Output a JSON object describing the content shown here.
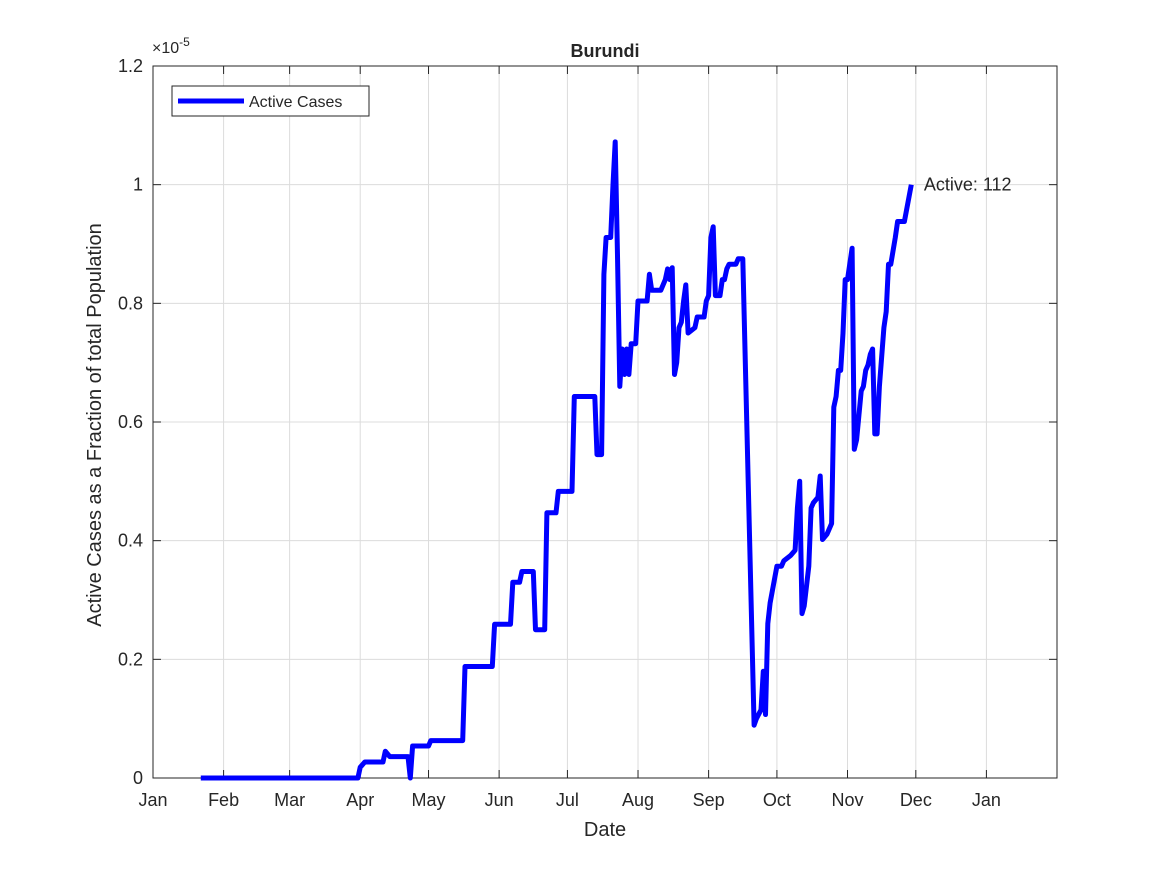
{
  "chart_data": {
    "type": "line",
    "title": "Burundi",
    "xlabel": "Date",
    "ylabel": "Active Cases as a Fraction of total Population",
    "y_exponent_label": "×10",
    "y_exponent_power": "-5",
    "xlim": [
      "2020-01-01",
      "2021-02-01"
    ],
    "ylim": [
      0,
      1.2
    ],
    "x_ticks": [
      {
        "date": "2020-01-01",
        "label": "Jan"
      },
      {
        "date": "2020-02-01",
        "label": "Feb"
      },
      {
        "date": "2020-03-01",
        "label": "Mar"
      },
      {
        "date": "2020-04-01",
        "label": "Apr"
      },
      {
        "date": "2020-05-01",
        "label": "May"
      },
      {
        "date": "2020-06-01",
        "label": "Jun"
      },
      {
        "date": "2020-07-01",
        "label": "Jul"
      },
      {
        "date": "2020-08-01",
        "label": "Aug"
      },
      {
        "date": "2020-09-01",
        "label": "Sep"
      },
      {
        "date": "2020-10-01",
        "label": "Oct"
      },
      {
        "date": "2020-11-01",
        "label": "Nov"
      },
      {
        "date": "2020-12-01",
        "label": "Dec"
      },
      {
        "date": "2021-01-01",
        "label": "Jan"
      }
    ],
    "y_ticks": [
      {
        "value": 0,
        "label": "0"
      },
      {
        "value": 0.2,
        "label": "0.2"
      },
      {
        "value": 0.4,
        "label": "0.4"
      },
      {
        "value": 0.6,
        "label": "0.6"
      },
      {
        "value": 0.8,
        "label": "0.8"
      },
      {
        "value": 1,
        "label": "1"
      },
      {
        "value": 1.2,
        "label": "1.2"
      }
    ],
    "grid": true,
    "legend": {
      "position": "top-left",
      "entries": [
        "Active Cases"
      ]
    },
    "annotations": [
      {
        "date": "2020-12-01",
        "value": 1.0,
        "text": "Active: 112"
      }
    ],
    "series": [
      {
        "name": "Active Cases",
        "color": "#0000ff",
        "points": [
          [
            "2020-01-22",
            0
          ],
          [
            "2020-03-31",
            0
          ],
          [
            "2020-04-01",
            0.018
          ],
          [
            "2020-04-03",
            0.027
          ],
          [
            "2020-04-11",
            0.027
          ],
          [
            "2020-04-12",
            0.045
          ],
          [
            "2020-04-14",
            0.036
          ],
          [
            "2020-04-22",
            0.036
          ],
          [
            "2020-04-23",
            0.0
          ],
          [
            "2020-04-24",
            0.054
          ],
          [
            "2020-05-01",
            0.054
          ],
          [
            "2020-05-02",
            0.063
          ],
          [
            "2020-05-16",
            0.063
          ],
          [
            "2020-05-17",
            0.188
          ],
          [
            "2020-05-29",
            0.188
          ],
          [
            "2020-05-30",
            0.259
          ],
          [
            "2020-06-06",
            0.259
          ],
          [
            "2020-06-07",
            0.33
          ],
          [
            "2020-06-10",
            0.33
          ],
          [
            "2020-06-11",
            0.348
          ],
          [
            "2020-06-16",
            0.348
          ],
          [
            "2020-06-17",
            0.25
          ],
          [
            "2020-06-21",
            0.25
          ],
          [
            "2020-06-22",
            0.447
          ],
          [
            "2020-06-26",
            0.447
          ],
          [
            "2020-06-27",
            0.483
          ],
          [
            "2020-07-03",
            0.483
          ],
          [
            "2020-07-04",
            0.643
          ],
          [
            "2020-07-13",
            0.643
          ],
          [
            "2020-07-14",
            0.545
          ],
          [
            "2020-07-16",
            0.545
          ],
          [
            "2020-07-17",
            0.849
          ],
          [
            "2020-07-18",
            0.911
          ],
          [
            "2020-07-20",
            0.911
          ],
          [
            "2020-07-21",
            1.0
          ],
          [
            "2020-07-22",
            1.072
          ],
          [
            "2020-07-23",
            0.88
          ],
          [
            "2020-07-24",
            0.66
          ],
          [
            "2020-07-25",
            0.723
          ],
          [
            "2020-07-26",
            0.68
          ],
          [
            "2020-07-27",
            0.723
          ],
          [
            "2020-07-28",
            0.68
          ],
          [
            "2020-07-29",
            0.732
          ],
          [
            "2020-07-31",
            0.732
          ],
          [
            "2020-08-01",
            0.804
          ],
          [
            "2020-08-05",
            0.804
          ],
          [
            "2020-08-06",
            0.849
          ],
          [
            "2020-08-07",
            0.822
          ],
          [
            "2020-08-11",
            0.822
          ],
          [
            "2020-08-13",
            0.84
          ],
          [
            "2020-08-14",
            0.858
          ],
          [
            "2020-08-15",
            0.84
          ],
          [
            "2020-08-16",
            0.86
          ],
          [
            "2020-08-17",
            0.68
          ],
          [
            "2020-08-18",
            0.7
          ],
          [
            "2020-08-19",
            0.759
          ],
          [
            "2020-08-20",
            0.768
          ],
          [
            "2020-08-21",
            0.804
          ],
          [
            "2020-08-22",
            0.831
          ],
          [
            "2020-08-23",
            0.75
          ],
          [
            "2020-08-26",
            0.759
          ],
          [
            "2020-08-27",
            0.777
          ],
          [
            "2020-08-30",
            0.777
          ],
          [
            "2020-08-31",
            0.804
          ],
          [
            "2020-09-01",
            0.813
          ],
          [
            "2020-09-02",
            0.911
          ],
          [
            "2020-09-03",
            0.929
          ],
          [
            "2020-09-04",
            0.813
          ],
          [
            "2020-09-06",
            0.813
          ],
          [
            "2020-09-07",
            0.84
          ],
          [
            "2020-09-08",
            0.84
          ],
          [
            "2020-09-09",
            0.858
          ],
          [
            "2020-09-10",
            0.866
          ],
          [
            "2020-09-13",
            0.866
          ],
          [
            "2020-09-14",
            0.875
          ],
          [
            "2020-09-16",
            0.875
          ],
          [
            "2020-09-21",
            0.089
          ],
          [
            "2020-09-22",
            0.1
          ],
          [
            "2020-09-24",
            0.115
          ],
          [
            "2020-09-25",
            0.18
          ],
          [
            "2020-09-26",
            0.107
          ],
          [
            "2020-09-27",
            0.26
          ],
          [
            "2020-09-28",
            0.295
          ],
          [
            "2020-10-01",
            0.357
          ],
          [
            "2020-10-03",
            0.357
          ],
          [
            "2020-10-04",
            0.366
          ],
          [
            "2020-10-07",
            0.375
          ],
          [
            "2020-10-09",
            0.384
          ],
          [
            "2020-10-10",
            0.455
          ],
          [
            "2020-10-11",
            0.5
          ],
          [
            "2020-10-12",
            0.277
          ],
          [
            "2020-10-13",
            0.29
          ],
          [
            "2020-10-15",
            0.357
          ],
          [
            "2020-10-16",
            0.455
          ],
          [
            "2020-10-17",
            0.464
          ],
          [
            "2020-10-19",
            0.473
          ],
          [
            "2020-10-20",
            0.509
          ],
          [
            "2020-10-21",
            0.402
          ],
          [
            "2020-10-23",
            0.411
          ],
          [
            "2020-10-25",
            0.429
          ],
          [
            "2020-10-26",
            0.625
          ],
          [
            "2020-10-27",
            0.643
          ],
          [
            "2020-10-28",
            0.687
          ],
          [
            "2020-10-29",
            0.687
          ],
          [
            "2020-10-30",
            0.75
          ],
          [
            "2020-10-31",
            0.84
          ],
          [
            "2020-11-01",
            0.84
          ],
          [
            "2020-11-03",
            0.893
          ],
          [
            "2020-11-04",
            0.554
          ],
          [
            "2020-11-05",
            0.57
          ],
          [
            "2020-11-07",
            0.652
          ],
          [
            "2020-11-08",
            0.66
          ],
          [
            "2020-11-09",
            0.687
          ],
          [
            "2020-11-10",
            0.696
          ],
          [
            "2020-11-11",
            0.714
          ],
          [
            "2020-11-12",
            0.723
          ],
          [
            "2020-11-13",
            0.58
          ],
          [
            "2020-11-14",
            0.58
          ],
          [
            "2020-11-15",
            0.66
          ],
          [
            "2020-11-17",
            0.759
          ],
          [
            "2020-11-18",
            0.786
          ],
          [
            "2020-11-19",
            0.866
          ],
          [
            "2020-11-20",
            0.866
          ],
          [
            "2020-11-22",
            0.911
          ],
          [
            "2020-11-23",
            0.938
          ],
          [
            "2020-11-26",
            0.938
          ],
          [
            "2020-11-29",
            1.0
          ]
        ]
      }
    ]
  }
}
